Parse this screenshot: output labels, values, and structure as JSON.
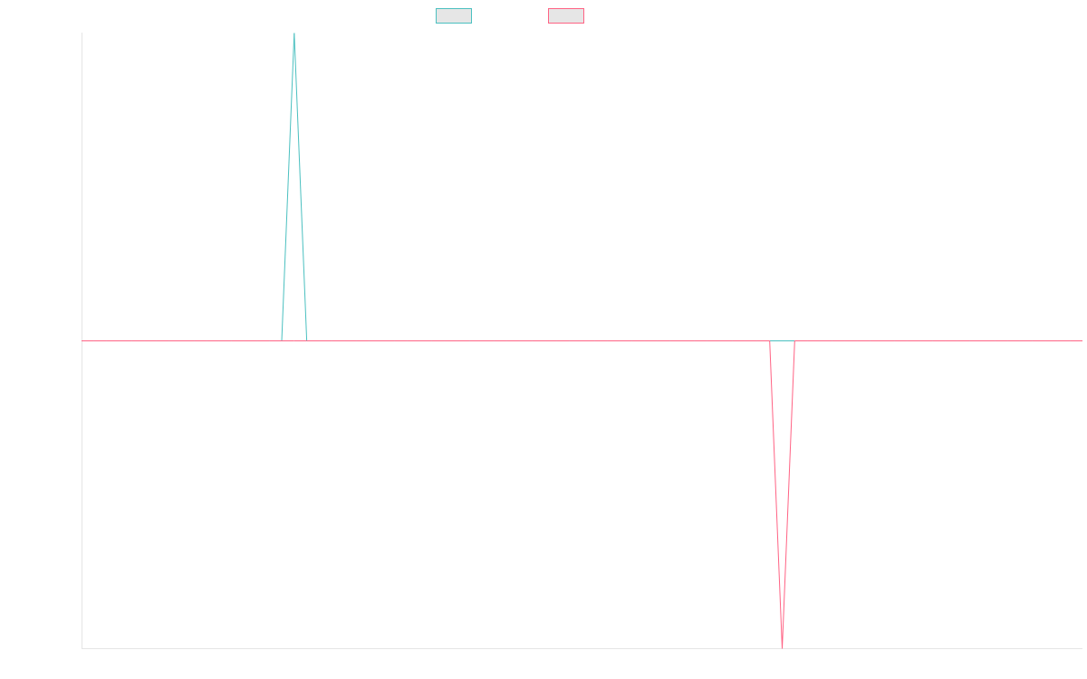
{
  "chart_data": {
    "type": "line",
    "title": "",
    "xlabel": "",
    "ylabel": "",
    "grid": false,
    "legend_position": "top-center",
    "x": [
      0,
      1,
      2,
      3,
      4,
      5,
      6,
      7,
      8,
      9,
      10,
      11,
      12,
      13,
      14,
      15,
      16,
      17,
      18,
      19,
      20,
      21,
      22,
      23,
      24,
      25,
      26,
      27,
      28,
      29,
      30,
      31,
      32,
      33,
      34,
      35,
      36,
      37,
      38,
      39,
      40,
      41,
      42,
      43,
      44,
      45,
      46,
      47,
      48,
      49,
      50,
      51,
      52,
      53,
      54,
      55,
      56,
      57,
      58,
      59,
      60,
      61,
      62,
      63,
      64,
      65,
      66,
      67,
      68,
      69,
      70,
      71,
      72,
      73,
      74,
      75,
      76,
      77,
      78,
      79,
      80
    ],
    "ylim": [
      -1,
      1
    ],
    "series": [
      {
        "color": "#4bc0c0",
        "values": [
          0,
          0,
          0,
          0,
          0,
          0,
          0,
          0,
          0,
          0,
          0,
          0,
          0,
          0,
          0,
          0,
          0,
          1,
          0,
          0,
          0,
          0,
          0,
          0,
          0,
          0,
          0,
          0,
          0,
          0,
          0,
          0,
          0,
          0,
          0,
          0,
          0,
          0,
          0,
          0,
          0,
          0,
          0,
          0,
          0,
          0,
          0,
          0,
          0,
          0,
          0,
          0,
          0,
          0,
          0,
          0,
          0,
          0,
          0,
          0,
          0,
          0,
          0,
          0,
          0,
          0,
          0,
          0,
          0,
          0,
          0,
          0,
          0,
          0,
          0,
          0,
          0,
          0,
          0,
          0,
          0
        ]
      },
      {
        "color": "#ff6384",
        "values": [
          0,
          0,
          0,
          0,
          0,
          0,
          0,
          0,
          0,
          0,
          0,
          0,
          0,
          0,
          0,
          0,
          0,
          0,
          0,
          0,
          0,
          0,
          0,
          0,
          0,
          0,
          0,
          0,
          0,
          0,
          0,
          0,
          0,
          0,
          0,
          0,
          0,
          0,
          0,
          0,
          0,
          0,
          0,
          0,
          0,
          0,
          0,
          0,
          0,
          0,
          0,
          0,
          0,
          0,
          0,
          0,
          -1,
          0,
          0,
          0,
          0,
          0,
          0,
          0,
          0,
          0,
          0,
          0,
          0,
          0,
          0,
          0,
          0,
          0,
          0,
          0,
          0,
          0,
          0,
          0,
          0
        ]
      }
    ]
  }
}
